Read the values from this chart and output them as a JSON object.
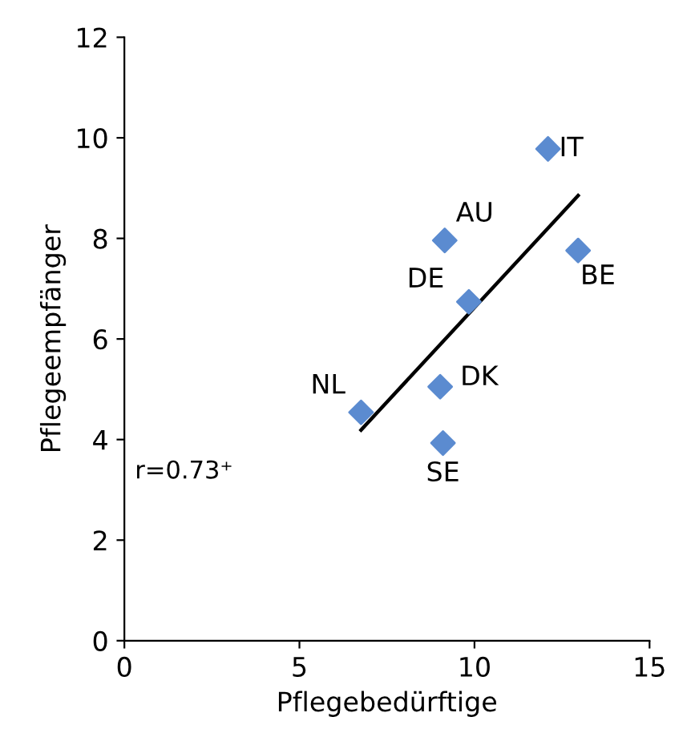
{
  "chart_data": {
    "type": "scatter",
    "xlabel": "Pflegebedürftige",
    "ylabel": "Pflegeempfänger",
    "xlim": [
      0,
      15
    ],
    "xticks": [
      0,
      5,
      10,
      15
    ],
    "ylim": [
      0,
      12
    ],
    "yticks": [
      0,
      2,
      4,
      6,
      8,
      10,
      12
    ],
    "grid": false,
    "legend": false,
    "series": [
      {
        "marker": "diamond",
        "color": "#5b8bd0",
        "x": [
          12.1,
          9.15,
          12.96,
          9.84,
          9.02,
          6.76,
          9.1
        ],
        "values": [
          9.78,
          7.96,
          7.76,
          6.74,
          5.05,
          4.54,
          3.93
        ]
      },
      {
        "type": "line",
        "marker": "none",
        "color": "#000000",
        "x": [
          6.76,
          12.96
        ],
        "values": [
          4.19,
          8.85
        ]
      }
    ],
    "annotations": [
      {
        "text": "IT",
        "x": 12.1,
        "y": 9.78
      },
      {
        "text": "AU",
        "x": 9.15,
        "y": 7.96
      },
      {
        "text": "BE",
        "x": 12.96,
        "y": 7.76
      },
      {
        "text": "DE",
        "x": 9.84,
        "y": 6.74
      },
      {
        "text": "DK",
        "x": 9.02,
        "y": 5.05
      },
      {
        "text": "NL",
        "x": 6.76,
        "y": 4.54
      },
      {
        "text": "SE",
        "x": 9.1,
        "y": 3.93
      },
      "r=0.73⁺"
    ]
  }
}
